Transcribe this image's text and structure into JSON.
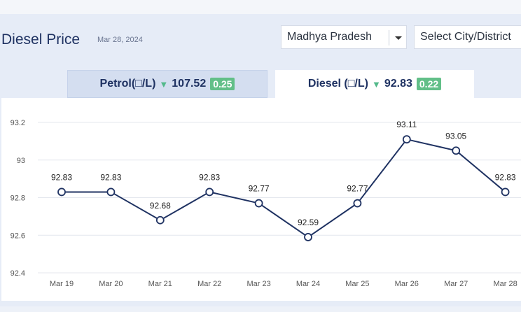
{
  "header": {
    "title": "Diesel Price",
    "date": "Mar 28, 2024",
    "state_select_value": "Madhya Pradesh",
    "city_select_value": "Select City/District"
  },
  "tabs": [
    {
      "label": "Petrol(□/L)",
      "price": "107.52",
      "change": "0.25",
      "trend": "down"
    },
    {
      "label": "Diesel (□/L)",
      "price": "92.83",
      "change": "0.22",
      "trend": "down"
    }
  ],
  "colors": {
    "line": "#1f3262",
    "change_badge": "#62bf88",
    "arrow": "#53b98a",
    "grid": "#e4e7ee"
  },
  "chart_data": {
    "type": "line",
    "categories": [
      "Mar 19",
      "Mar 20",
      "Mar 21",
      "Mar 22",
      "Mar 23",
      "Mar 24",
      "Mar 25",
      "Mar 26",
      "Mar 27",
      "Mar 28"
    ],
    "values": [
      92.83,
      92.83,
      92.68,
      92.83,
      92.77,
      92.59,
      92.77,
      93.11,
      93.05,
      92.83
    ],
    "data_labels": [
      "92.83",
      "92.83",
      "92.68",
      "92.83",
      "92.77",
      "92.59",
      "92.77",
      "93.11",
      "93.05",
      "92.83"
    ],
    "y_ticks": [
      "92.4",
      "92.6",
      "92.8",
      "93",
      "93.2"
    ],
    "ylim": [
      92.4,
      93.2
    ],
    "grid": true,
    "legend": "none"
  }
}
